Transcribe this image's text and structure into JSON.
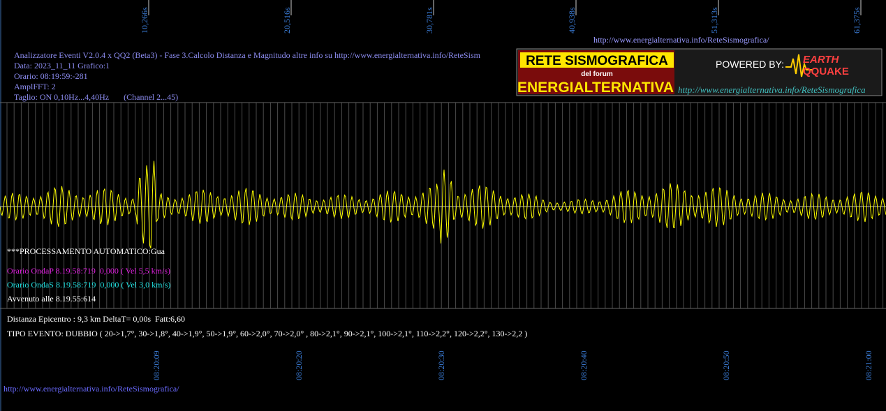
{
  "top_axis": {
    "labels": [
      "10,266s",
      "20,516s",
      "30,781s",
      "40,938s",
      "51,313s",
      "61,375s"
    ]
  },
  "header": {
    "url": "http://www.energialternativa.info/ReteSismografica/",
    "lines": [
      "Analizzatore Eventi V2.0.4 x QQ2 (Beta3) - Fase 3.Calcolo Distanza e Magnitudo altre info su http://www.energialternativa.info/ReteSism",
      "Data: 2023_11_11 Grafico:1",
      "Orario: 08:19:59:-281",
      "AmplFFT: 2",
      "Taglio: ON 0,10Hz...4,40Hz       (Channel 2...45)"
    ]
  },
  "logo": {
    "title1": "RETE SISMOGRAFICA",
    "subtitle": "del forum",
    "title2": "ENERGIALTERNATIVA",
    "powered": "POWERED BY:",
    "brand1": "EARTH",
    "brand2": "QQUAKE",
    "url": "http://www.energialternativa.info/ReteSismografica"
  },
  "results": {
    "status": "***PROCESSAMENTO AUTOMATICO:Gua",
    "p_wave": "Orario OndaP 8.19.58:719  0,000 ( Vel 5,5 km/s)",
    "s_wave": "Orario OndaS 8.19.58:719  0,000 ( Vel 3,0 km/s)",
    "occurred": "Avvenuto alle 8.19.55:614",
    "distance": "Distanza Epicentro : 9,3 km DeltaT= 0,00s  Fatt:6,60",
    "event_type": "TIPO EVENTO: DUBBIO ( 20->1,7°, 30->1,8°, 40->1,9°, 50->1,9°, 60->2,0°, 70->2,0° , 80->2,1°, 90->2,1°, 100->2,1°, 110->2,2°, 120->2,2°, 130->2,2 )"
  },
  "bottom_axis": {
    "labels": [
      "08:20:09",
      "08:20:20",
      "08:20:30",
      "08:20:40",
      "08:20:50",
      "08:21:00"
    ]
  },
  "footer": {
    "url": "http://www.energialternativa.info/ReteSismografica/"
  }
}
